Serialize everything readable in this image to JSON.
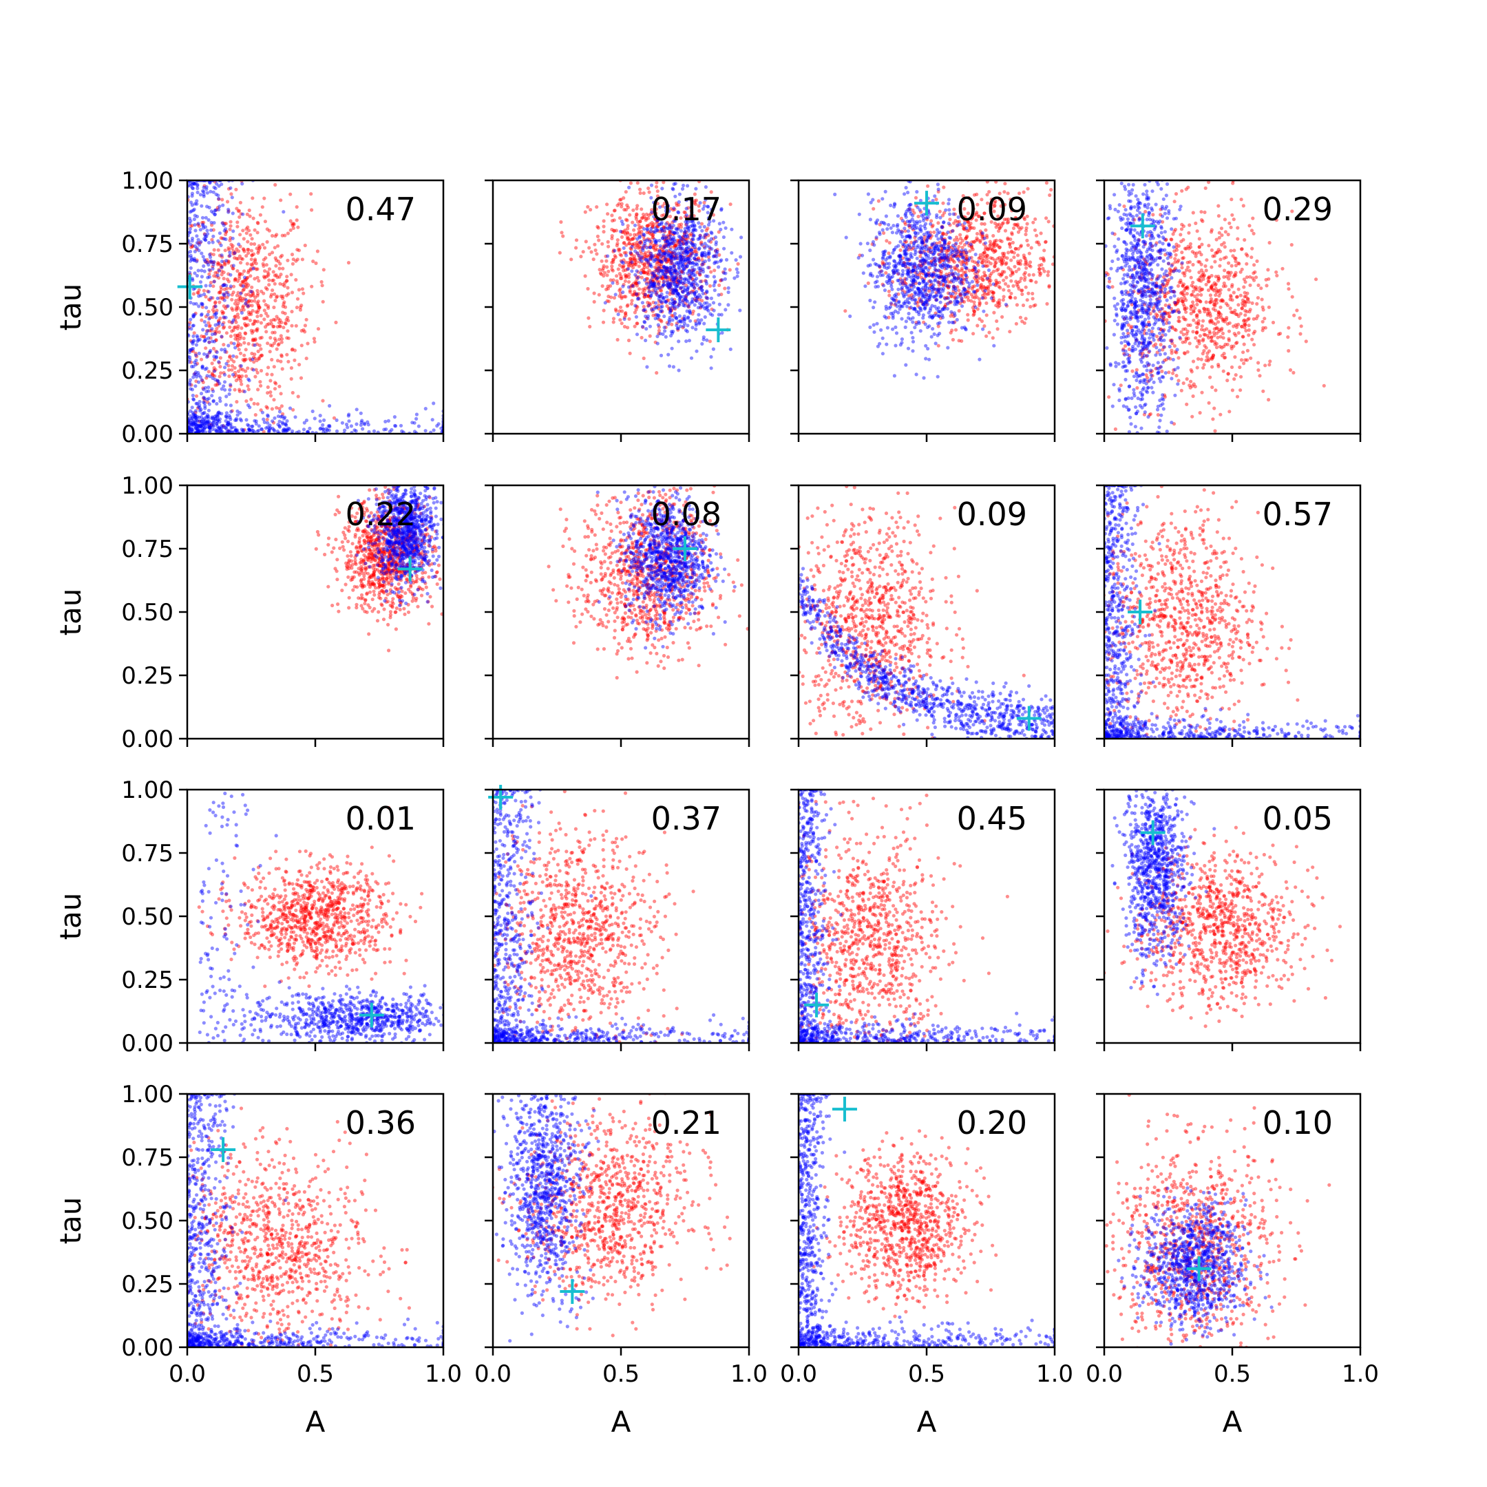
{
  "colors": {
    "series_a": "#ff0000",
    "series_b": "#0000ff",
    "marker": "#17becf",
    "axis": "#000000"
  },
  "chart_data": {
    "type": "scatter",
    "layout": "4x4 grid",
    "xlabel": "A",
    "ylabel": "tau",
    "xlim": [
      0.0,
      1.0
    ],
    "ylim": [
      0.0,
      1.0
    ],
    "x_tick_labels": [
      "0.0",
      "0.5",
      "1.0"
    ],
    "y_tick_labels": [
      "0.00",
      "0.25",
      "0.50",
      "0.75",
      "1.00"
    ],
    "legend": "none",
    "grid": false,
    "series_colors": [
      "red",
      "blue"
    ],
    "marker_symbol": "+",
    "panels": [
      {
        "label": "0.47",
        "red": {
          "cx": 0.22,
          "cy": 0.5,
          "sx": 0.13,
          "sy": 0.22,
          "spread": "broad"
        },
        "blue": {
          "cx": 0.04,
          "cy": 0.05,
          "sx": 0.1,
          "sy": 0.15,
          "spread": "L-shaped along axes"
        },
        "marker": [
          0.01,
          0.58
        ]
      },
      {
        "label": "0.17",
        "red": {
          "cx": 0.63,
          "cy": 0.68,
          "sx": 0.12,
          "sy": 0.13
        },
        "blue": {
          "cx": 0.72,
          "cy": 0.65,
          "sx": 0.09,
          "sy": 0.14
        },
        "marker": [
          0.88,
          0.41
        ]
      },
      {
        "label": "0.09",
        "red": {
          "cx": 0.68,
          "cy": 0.68,
          "sx": 0.15,
          "sy": 0.13
        },
        "blue": {
          "cx": 0.48,
          "cy": 0.65,
          "sx": 0.1,
          "sy": 0.14
        },
        "marker": [
          0.5,
          0.91
        ]
      },
      {
        "label": "0.29",
        "red": {
          "cx": 0.38,
          "cy": 0.5,
          "sx": 0.15,
          "sy": 0.18
        },
        "blue": {
          "cx": 0.15,
          "cy": 0.55,
          "sx": 0.06,
          "sy": 0.25
        },
        "marker": [
          0.15,
          0.82
        ]
      },
      {
        "label": "0.22",
        "red": {
          "cx": 0.78,
          "cy": 0.72,
          "sx": 0.09,
          "sy": 0.11
        },
        "blue": {
          "cx": 0.85,
          "cy": 0.82,
          "sx": 0.06,
          "sy": 0.1
        },
        "marker": [
          0.87,
          0.67
        ]
      },
      {
        "label": "0.08",
        "red": {
          "cx": 0.6,
          "cy": 0.65,
          "sx": 0.13,
          "sy": 0.16
        },
        "blue": {
          "cx": 0.68,
          "cy": 0.72,
          "sx": 0.08,
          "sy": 0.12
        },
        "marker": [
          0.75,
          0.75
        ]
      },
      {
        "label": "0.09",
        "red": {
          "cx": 0.28,
          "cy": 0.45,
          "sx": 0.14,
          "sy": 0.22
        },
        "blue": {
          "cx": 0.35,
          "cy": 0.15,
          "sx": 0.25,
          "sy": 0.1,
          "spread": "decaying curve"
        },
        "marker": [
          0.9,
          0.08
        ]
      },
      {
        "label": "0.57",
        "red": {
          "cx": 0.3,
          "cy": 0.45,
          "sx": 0.15,
          "sy": 0.22
        },
        "blue": {
          "cx": 0.06,
          "cy": 0.35,
          "sx": 0.06,
          "sy": 0.3,
          "spread": "L-shaped along axes"
        },
        "marker": [
          0.14,
          0.5
        ]
      },
      {
        "label": "0.01",
        "red": {
          "cx": 0.5,
          "cy": 0.5,
          "sx": 0.15,
          "sy": 0.1
        },
        "blue": {
          "cx": 0.65,
          "cy": 0.1,
          "sx": 0.2,
          "sy": 0.05,
          "spread": "band near bottom"
        },
        "marker": [
          0.72,
          0.11
        ]
      },
      {
        "label": "0.37",
        "red": {
          "cx": 0.33,
          "cy": 0.45,
          "sx": 0.15,
          "sy": 0.2
        },
        "blue": {
          "cx": 0.05,
          "cy": 0.2,
          "sx": 0.08,
          "sy": 0.3,
          "spread": "L-shaped along axes"
        },
        "marker": [
          0.03,
          0.97
        ]
      },
      {
        "label": "0.45",
        "red": {
          "cx": 0.28,
          "cy": 0.4,
          "sx": 0.14,
          "sy": 0.22
        },
        "blue": {
          "cx": 0.05,
          "cy": 0.3,
          "sx": 0.05,
          "sy": 0.3,
          "spread": "L-shaped along axes"
        },
        "marker": [
          0.07,
          0.15
        ]
      },
      {
        "label": "0.05",
        "red": {
          "cx": 0.45,
          "cy": 0.45,
          "sx": 0.15,
          "sy": 0.15
        },
        "blue": {
          "cx": 0.2,
          "cy": 0.7,
          "sx": 0.06,
          "sy": 0.18
        },
        "marker": [
          0.19,
          0.83
        ]
      },
      {
        "label": "0.36",
        "red": {
          "cx": 0.35,
          "cy": 0.4,
          "sx": 0.18,
          "sy": 0.18
        },
        "blue": {
          "cx": 0.12,
          "cy": 0.55,
          "sx": 0.08,
          "sy": 0.25,
          "spread": "L-shaped along axes"
        },
        "marker": [
          0.14,
          0.78
        ]
      },
      {
        "label": "0.21",
        "red": {
          "cx": 0.45,
          "cy": 0.55,
          "sx": 0.16,
          "sy": 0.18
        },
        "blue": {
          "cx": 0.2,
          "cy": 0.65,
          "sx": 0.07,
          "sy": 0.22
        },
        "marker": [
          0.31,
          0.22
        ]
      },
      {
        "label": "0.20",
        "red": {
          "cx": 0.42,
          "cy": 0.48,
          "sx": 0.12,
          "sy": 0.14
        },
        "blue": {
          "cx": 0.15,
          "cy": 0.55,
          "sx": 0.05,
          "sy": 0.25,
          "spread": "L-shaped curve"
        },
        "marker": [
          0.18,
          0.94
        ]
      },
      {
        "label": "0.10",
        "red": {
          "cx": 0.35,
          "cy": 0.4,
          "sx": 0.16,
          "sy": 0.2
        },
        "blue": {
          "cx": 0.35,
          "cy": 0.32,
          "sx": 0.1,
          "sy": 0.12
        },
        "marker": [
          0.37,
          0.31
        ]
      }
    ]
  }
}
